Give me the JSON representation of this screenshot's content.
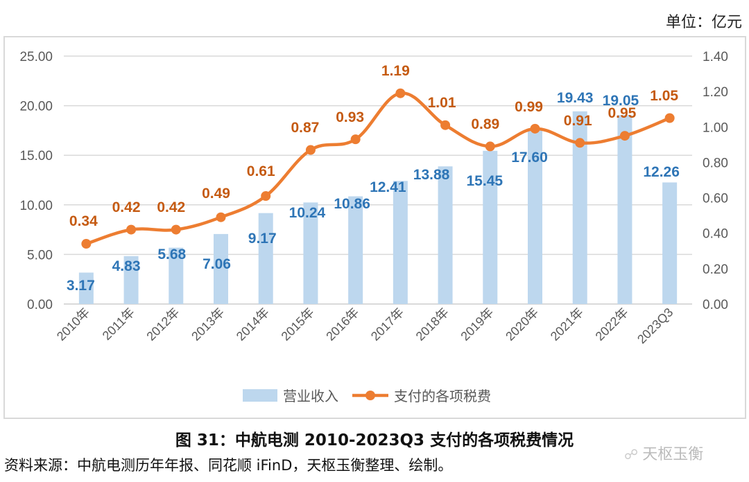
{
  "unit_label": "单位：亿元",
  "caption": "图 31：中航电测 2010-2023Q3 支付的各项税费情况",
  "source": "资料来源：中航电测历年年报、同花顺 iFinD，天枢玉衡整理、绘制。",
  "watermark": "天枢玉衡",
  "watermark_icon": "wechat-icon",
  "colors": {
    "bar": "#bdd7ee",
    "bar_label": "#2e75b6",
    "line": "#ed7d31",
    "line_label": "#c55a11",
    "grid": "#d9d9d9",
    "tick": "#595959"
  },
  "chart_data": {
    "type": "bar+line",
    "title": "",
    "categories": [
      "2010年",
      "2011年",
      "2012年",
      "2013年",
      "2014年",
      "2015年",
      "2016年",
      "2017年",
      "2018年",
      "2019年",
      "2020年",
      "2021年",
      "2022年",
      "2023Q3"
    ],
    "series": [
      {
        "name": "营业收入",
        "type": "bar",
        "axis": "left",
        "values": [
          3.17,
          4.83,
          5.68,
          7.06,
          9.17,
          10.24,
          10.86,
          12.41,
          13.88,
          15.45,
          17.6,
          19.43,
          19.05,
          12.26
        ]
      },
      {
        "name": "支付的各项税费",
        "type": "line",
        "axis": "right",
        "values": [
          0.34,
          0.42,
          0.42,
          0.49,
          0.61,
          0.87,
          0.93,
          1.19,
          1.01,
          0.89,
          0.99,
          0.91,
          0.95,
          1.05
        ]
      }
    ],
    "y_left": {
      "min": 0,
      "max": 25,
      "ticks": [
        "0.00",
        "5.00",
        "10.00",
        "15.00",
        "20.00",
        "25.00"
      ]
    },
    "y_right": {
      "min": 0,
      "max": 1.4,
      "ticks": [
        "0.00",
        "0.20",
        "0.40",
        "0.60",
        "0.80",
        "1.00",
        "1.20",
        "1.40"
      ]
    },
    "grid": true,
    "legend": {
      "position": "bottom",
      "entries": [
        "营业收入",
        "支付的各项税费"
      ]
    }
  }
}
